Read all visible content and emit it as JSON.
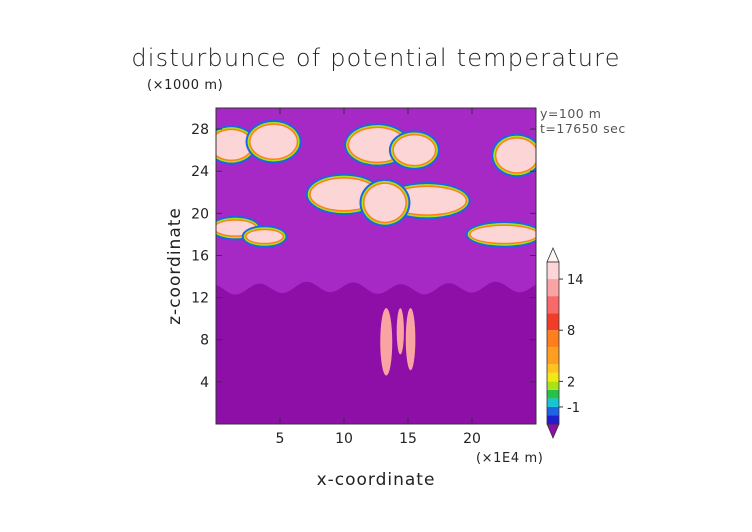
{
  "chart_data": {
    "type": "heatmap",
    "title": "disturbunce of potential temperature",
    "xlabel": "x-coordinate",
    "ylabel": "z-coordinate",
    "x_unit": "(×1E4 m)",
    "y_unit": "(×1000 m)",
    "xlim": [
      0,
      25
    ],
    "ylim": [
      0,
      30
    ],
    "x_ticks": [
      5,
      10,
      15,
      20
    ],
    "y_ticks": [
      4,
      8,
      12,
      16,
      20,
      24,
      28
    ],
    "annotations": [
      "y=100 m",
      "t=17650 sec"
    ],
    "colorbar": {
      "tick_labels": [
        "-1",
        "2",
        "8",
        "14"
      ],
      "tick_values": [
        -1,
        2,
        8,
        14
      ],
      "levels": [
        -3,
        -2,
        -1,
        0,
        1,
        2,
        3,
        4,
        6,
        8,
        10,
        12,
        14,
        16
      ],
      "colors": [
        "#8e0fa8",
        "#1f1fd0",
        "#1f64e6",
        "#16c4d2",
        "#27c04a",
        "#a9e21a",
        "#f1ea12",
        "#ffc41a",
        "#ff9e1f",
        "#ff7e1e",
        "#f23c2a",
        "#f86a6a",
        "#f9a3a3",
        "#fcd6d6",
        "#fff5f5"
      ],
      "extend": "both"
    },
    "background_color": "#a629c6"
  }
}
